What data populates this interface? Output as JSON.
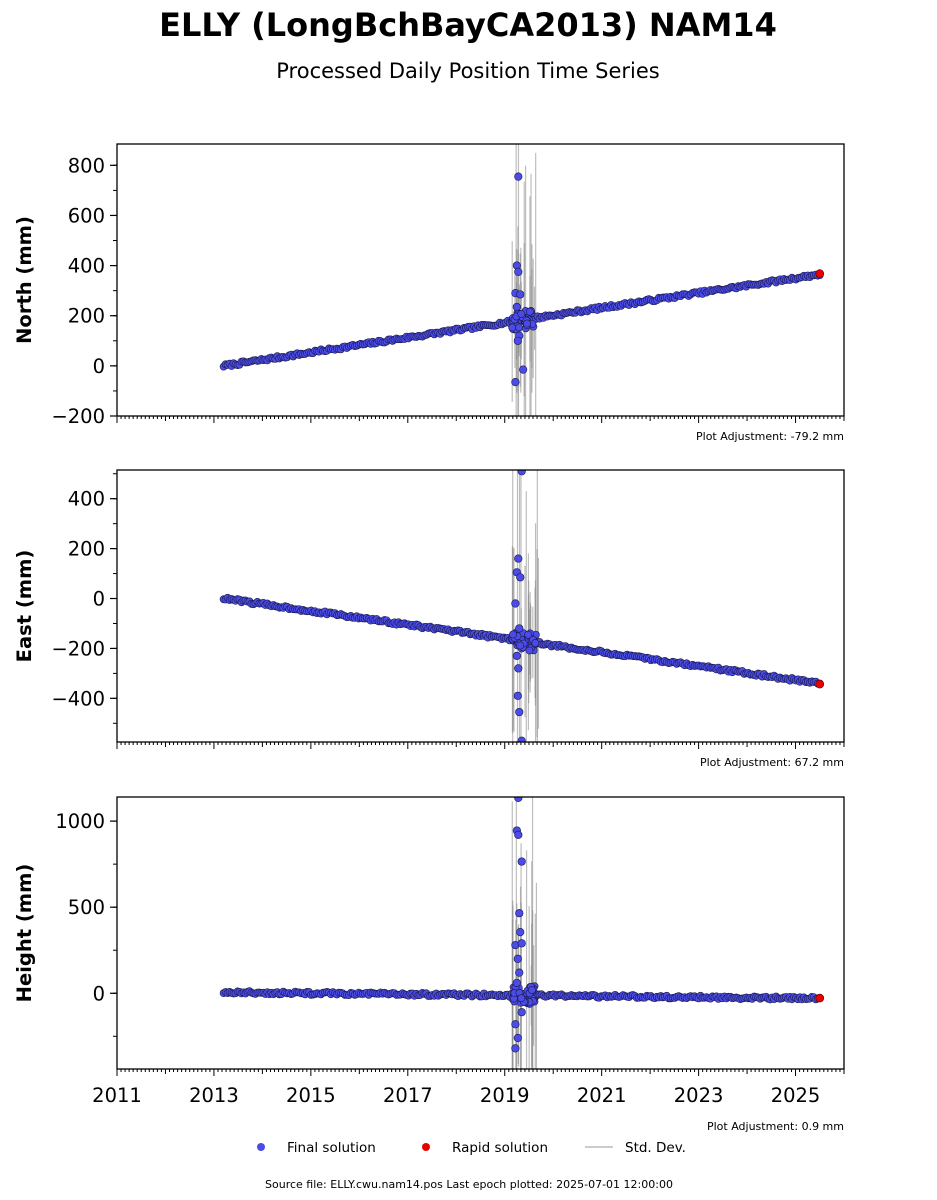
{
  "figure": {
    "title": "ELLY (LongBchBayCA2013) NAM14",
    "subtitle": "Processed Daily Position Time Series",
    "footer": "Source file: ELLY.cwu.nam14.pos  Last epoch plotted: 2025-07-01 12:00:00"
  },
  "legend": {
    "final": "Final solution",
    "rapid": "Rapid solution",
    "std": "Std. Dev."
  },
  "colors": {
    "final_fill": "#4b4be8",
    "final_edge": "#1a1a4a",
    "rapid": "#e60000",
    "std_band": "#888888",
    "axis": "#000000"
  },
  "chart_data": [
    {
      "type": "scatter",
      "ylabel": "North (mm)",
      "adjustment": "Plot Adjustment: -79.2 mm",
      "xlim": [
        2011,
        2026
      ],
      "ylim": [
        -200,
        885
      ],
      "yticks": [
        -200,
        0,
        200,
        400,
        600,
        800
      ],
      "ytick_labels": [
        "−200",
        "0",
        "200",
        "400",
        "600",
        "800"
      ],
      "trend": {
        "start": [
          2013.2,
          0
        ],
        "end": [
          2025.5,
          365
        ]
      },
      "noise": 6,
      "outliers": [
        [
          2019.28,
          755
        ],
        [
          2019.25,
          400
        ],
        [
          2019.28,
          375
        ],
        [
          2019.22,
          290
        ],
        [
          2019.32,
          285
        ],
        [
          2019.25,
          235
        ],
        [
          2019.3,
          120
        ],
        [
          2019.27,
          100
        ],
        [
          2019.22,
          -65
        ],
        [
          2019.38,
          -15
        ]
      ],
      "rapid_points": [
        [
          2025.5,
          368
        ]
      ]
    },
    {
      "type": "scatter",
      "ylabel": "East (mm)",
      "adjustment": "Plot Adjustment: 67.2 mm",
      "xlim": [
        2011,
        2026
      ],
      "ylim": [
        -575,
        515
      ],
      "yticks": [
        -400,
        -200,
        0,
        200,
        400
      ],
      "ytick_labels": [
        "−400",
        "−200",
        "0",
        "200",
        "400"
      ],
      "trend": {
        "start": [
          2013.2,
          0
        ],
        "end": [
          2025.5,
          -340
        ]
      },
      "noise": 6,
      "outliers": [
        [
          2019.35,
          510
        ],
        [
          2019.28,
          160
        ],
        [
          2019.25,
          105
        ],
        [
          2019.32,
          85
        ],
        [
          2019.22,
          -20
        ],
        [
          2019.3,
          -120
        ],
        [
          2019.25,
          -230
        ],
        [
          2019.28,
          -280
        ],
        [
          2019.27,
          -390
        ],
        [
          2019.3,
          -455
        ],
        [
          2019.35,
          -570
        ]
      ],
      "rapid_points": [
        [
          2025.5,
          -343
        ]
      ]
    },
    {
      "type": "scatter",
      "ylabel": "Height (mm)",
      "adjustment": "Plot Adjustment: 0.9 mm",
      "xlim": [
        2011,
        2026
      ],
      "ylim": [
        -440,
        1140
      ],
      "yticks": [
        0,
        500,
        1000
      ],
      "ytick_labels": [
        "0",
        "500",
        "1000"
      ],
      "xtick_labels": [
        "2011",
        "2013",
        "2015",
        "2017",
        "2019",
        "2021",
        "2023",
        "2025"
      ],
      "trend": {
        "start": [
          2013.2,
          5
        ],
        "end": [
          2025.5,
          -30
        ]
      },
      "noise": 9,
      "outliers": [
        [
          2019.28,
          1135
        ],
        [
          2019.25,
          945
        ],
        [
          2019.35,
          765
        ],
        [
          2019.28,
          920
        ],
        [
          2019.3,
          465
        ],
        [
          2019.32,
          355
        ],
        [
          2019.22,
          280
        ],
        [
          2019.35,
          290
        ],
        [
          2019.27,
          200
        ],
        [
          2019.3,
          120
        ],
        [
          2019.25,
          60
        ],
        [
          2019.22,
          -180
        ],
        [
          2019.27,
          -260
        ],
        [
          2019.22,
          -320
        ],
        [
          2019.35,
          -110
        ]
      ],
      "rapid_points": [
        [
          2025.5,
          -28
        ]
      ]
    }
  ]
}
